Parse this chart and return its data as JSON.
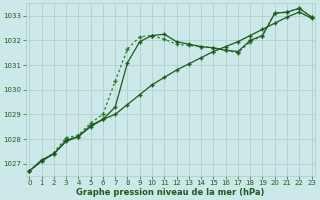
{
  "x": [
    0,
    1,
    2,
    3,
    4,
    5,
    6,
    7,
    8,
    9,
    10,
    11,
    12,
    13,
    14,
    15,
    16,
    17,
    18,
    19,
    20,
    21,
    22,
    23
  ],
  "line_solid1": [
    1026.7,
    1027.1,
    1027.4,
    1027.9,
    1028.1,
    1028.55,
    1028.8,
    1029.3,
    1031.1,
    1031.95,
    1032.2,
    1032.25,
    1031.95,
    1031.85,
    1031.75,
    1031.7,
    1031.6,
    1031.55,
    1032.0,
    1032.2,
    1033.1,
    1033.15,
    1033.3,
    1032.95
  ],
  "line_dotted": [
    1026.7,
    1027.1,
    1027.45,
    1028.05,
    1028.15,
    1028.65,
    1029.0,
    1030.35,
    1031.65,
    1032.15,
    1032.2,
    1032.05,
    1031.85,
    1031.8,
    1031.75,
    1031.7,
    1031.6,
    1031.5,
    1031.95,
    1032.2,
    1033.1,
    1033.15,
    1033.3,
    1032.95
  ],
  "line_solid2": [
    1026.7,
    1027.15,
    1027.4,
    1027.95,
    1028.1,
    1028.5,
    1028.8,
    1029.0,
    1029.4,
    1029.8,
    1030.2,
    1030.5,
    1030.8,
    1031.05,
    1031.3,
    1031.55,
    1031.75,
    1031.95,
    1032.2,
    1032.45,
    1032.7,
    1032.95,
    1033.15,
    1032.9
  ],
  "ylim_min": 1026.5,
  "ylim_max": 1033.5,
  "yticks": [
    1027,
    1028,
    1029,
    1030,
    1031,
    1032,
    1033
  ],
  "xticks": [
    0,
    1,
    2,
    3,
    4,
    5,
    6,
    7,
    8,
    9,
    10,
    11,
    12,
    13,
    14,
    15,
    16,
    17,
    18,
    19,
    20,
    21,
    22,
    23
  ],
  "xlabel": "Graphe pression niveau de la mer (hPa)",
  "bg_color": "#cce8e8",
  "grid_color": "#aacccc",
  "line_color1": "#1a5c1a",
  "line_color2": "#2a7a2a",
  "tick_fontsize": 5.0,
  "xlabel_fontsize": 6.0,
  "linewidth": 0.9,
  "marker_size": 3.5,
  "marker_ew": 1.0
}
